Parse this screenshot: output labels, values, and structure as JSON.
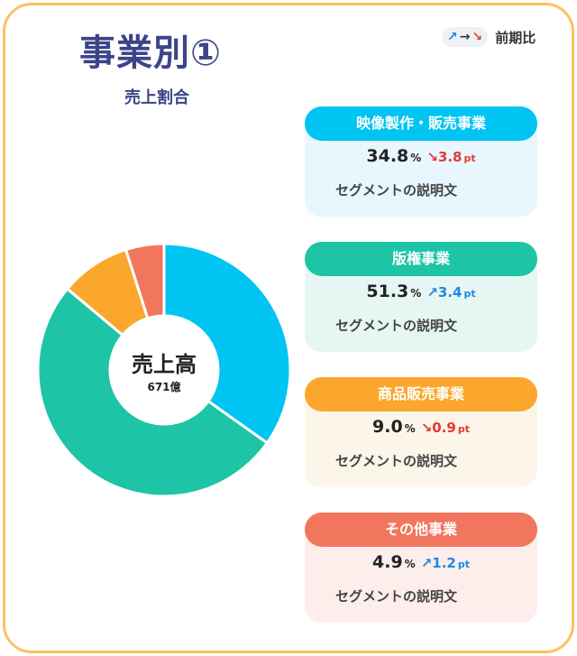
{
  "header": {
    "title": "事業別①",
    "subtitle": "売上割合"
  },
  "legend": {
    "icons": [
      {
        "name": "trend-up-icon",
        "glyph": "↗"
      },
      {
        "name": "trend-flat-icon",
        "glyph": "→"
      },
      {
        "name": "trend-down-icon",
        "glyph": "↘"
      }
    ],
    "label": "前期比"
  },
  "colors": {
    "frame": "#fbc25f",
    "title": "#3d4488",
    "up": "#1e88e5",
    "down": "#e53935"
  },
  "chart_data": {
    "type": "pie",
    "style": "donut",
    "center_label": "売上高",
    "center_value": "671億",
    "slices": [
      {
        "label": "映像製作・販売事業",
        "value": 34.8,
        "color": "#00c4f2"
      },
      {
        "label": "版権事業",
        "value": 51.3,
        "color": "#1ec4a6"
      },
      {
        "label": "商品販売事業",
        "value": 9.0,
        "color": "#fba72d"
      },
      {
        "label": "その他事業",
        "value": 4.9,
        "color": "#f2765d"
      }
    ]
  },
  "segments": [
    {
      "name": "映像製作・販売事業",
      "share": "34.8",
      "pct_unit": "%",
      "change_icon": "↘",
      "change": "3.8",
      "change_unit": "pt",
      "direction": "down",
      "description": "セグメントの説明文"
    },
    {
      "name": "版権事業",
      "share": "51.3",
      "pct_unit": "%",
      "change_icon": "↗",
      "change": "3.4",
      "change_unit": "pt",
      "direction": "up",
      "description": "セグメントの説明文"
    },
    {
      "name": "商品販売事業",
      "share": "9.0",
      "pct_unit": "%",
      "change_icon": "↘",
      "change": "0.9",
      "change_unit": "pt",
      "direction": "down",
      "description": "セグメントの説明文"
    },
    {
      "name": "その他事業",
      "share": "4.9",
      "pct_unit": "%",
      "change_icon": "↗",
      "change": "1.2",
      "change_unit": "pt",
      "direction": "up",
      "description": "セグメントの説明文"
    }
  ]
}
